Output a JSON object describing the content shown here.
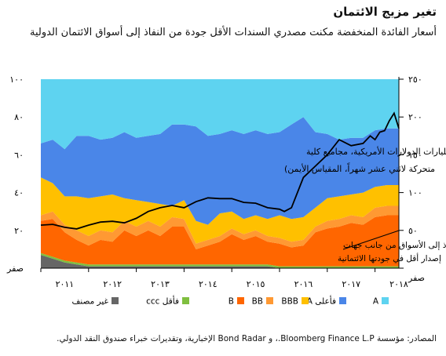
{
  "header": {
    "title": "تغير مزيج الائتمان",
    "subtitle": "أسعار الفائدة المنخفضة مكنت مصدري السندات الأقل جودة من النفاذ إلى أسواق الائتمان الدولية"
  },
  "footer": {
    "source": "المصادر: مؤسسة Bloomberg Finance L.P.، و Bond Radar الإخبارية، وتقديرات خبراء صندوق النقد الدولي."
  },
  "annotations": {
    "line_note_1": "الإصدار (بمليارات الدولارات الأمريكية، مجاميع كلية",
    "line_note_2": "متحركة لاثني عشر شهراً، المقياس الأيمن)",
    "share_note_1": "النفاذ إلى الأسواق من جانب جهات",
    "share_note_2": "إصدار أقل في جودتها الائتمانية"
  },
  "colors": {
    "A": "#5ed3f0",
    "A_or_higher": "#4a86e8",
    "BBB": "#ffc000",
    "BB": "#ff9933",
    "B": "#ff6600",
    "CCC": "#7fbf3f",
    "unrated": "#666666",
    "line": "#000000"
  },
  "chart_data": {
    "type": "area",
    "xlabel": "",
    "ylabel": "",
    "x_ticks": [
      "٢٠١١",
      "٢٠١٢",
      "٢٠١٣",
      "٢٠١٤",
      "٢٠١٥",
      "٢٠١٦",
      "٢٠١٧",
      "٢٠١٨"
    ],
    "x_range": [
      2011.0,
      2018.5
    ],
    "left_axis": {
      "range": [
        0,
        100
      ],
      "ticks": [
        0,
        20,
        40,
        60,
        80,
        100
      ],
      "tick_labels": [
        "صفر",
        "٢٠",
        "٤٠",
        "٦٠",
        "٨٠",
        "١٠٠"
      ]
    },
    "right_axis": {
      "range": [
        0,
        250
      ],
      "ticks": [
        0,
        50,
        100,
        150,
        200,
        250
      ],
      "tick_labels": [
        "صفر",
        "٥٠",
        "١٠٠",
        "١٥٠",
        "٢٠٠",
        "٢٥٠"
      ]
    },
    "legend": [
      "A",
      "A فأعلى",
      "BBB",
      "BB",
      "B",
      "ccc فأقل",
      "غير مصنف"
    ],
    "x": [
      2011.0,
      2011.25,
      2011.5,
      2011.75,
      2012.0,
      2012.25,
      2012.5,
      2012.75,
      2013.0,
      2013.25,
      2013.5,
      2013.75,
      2014.0,
      2014.25,
      2014.5,
      2014.75,
      2015.0,
      2015.25,
      2015.5,
      2015.75,
      2016.0,
      2016.25,
      2016.5,
      2016.75,
      2017.0,
      2017.25,
      2017.5,
      2017.75,
      2018.0,
      2018.25,
      2018.5
    ],
    "series": [
      {
        "name": "غير مصنف",
        "key": "unrated",
        "values": [
          7,
          5,
          3,
          2,
          1,
          1,
          1,
          1,
          1,
          1,
          1,
          1,
          1,
          1,
          1,
          1,
          1,
          1,
          1,
          1,
          0,
          0,
          0,
          0,
          0,
          0,
          0,
          0,
          0,
          0,
          0
        ]
      },
      {
        "name": "ccc فأقل",
        "key": "CCC",
        "values": [
          1,
          1,
          1,
          1,
          1,
          1,
          1,
          1,
          1,
          1,
          1,
          1,
          1,
          1,
          1,
          1,
          1,
          1,
          1,
          1,
          1,
          1,
          1,
          1,
          1,
          1,
          1,
          1,
          1,
          1,
          1
        ]
      },
      {
        "name": "B",
        "key": "B",
        "values": [
          17,
          20,
          15,
          12,
          10,
          13,
          12,
          18,
          15,
          18,
          15,
          20,
          20,
          8,
          10,
          12,
          16,
          13,
          15,
          12,
          12,
          10,
          11,
          18,
          20,
          21,
          23,
          22,
          26,
          27,
          27
        ]
      },
      {
        "name": "BB",
        "key": "BB",
        "values": [
          3,
          4,
          4,
          5,
          5,
          5,
          5,
          5,
          5,
          5,
          5,
          5,
          4,
          3,
          3,
          3,
          3,
          3,
          3,
          3,
          3,
          3,
          3,
          3,
          4,
          4,
          4,
          4,
          5,
          5,
          5
        ]
      },
      {
        "name": "BBB",
        "key": "BBB",
        "values": [
          20,
          15,
          15,
          18,
          20,
          18,
          20,
          12,
          14,
          10,
          12,
          6,
          10,
          12,
          8,
          12,
          9,
          8,
          8,
          9,
          12,
          12,
          12,
          10,
          12,
          12,
          11,
          13,
          11,
          11,
          11
        ]
      },
      {
        "name": "A فأعلى",
        "key": "A_or_higher",
        "values": [
          18,
          23,
          25,
          32,
          33,
          30,
          30,
          35,
          33,
          35,
          37,
          43,
          40,
          50,
          47,
          42,
          43,
          45,
          45,
          45,
          44,
          50,
          53,
          40,
          34,
          30,
          30,
          29,
          30,
          30,
          30
        ]
      },
      {
        "name": "A",
        "key": "A",
        "values": [
          34,
          32,
          37,
          30,
          30,
          32,
          31,
          28,
          31,
          30,
          29,
          24,
          24,
          25,
          30,
          29,
          27,
          29,
          27,
          29,
          28,
          24,
          20,
          28,
          29,
          32,
          31,
          31,
          27,
          26,
          26
        ]
      }
    ],
    "issuance": {
      "name": "الإصدار",
      "x": [
        2011.0,
        2011.25,
        2011.5,
        2011.75,
        2012.0,
        2012.25,
        2012.5,
        2012.75,
        2013.0,
        2013.25,
        2013.5,
        2013.75,
        2014.0,
        2014.25,
        2014.5,
        2014.75,
        2015.0,
        2015.25,
        2015.5,
        2015.75,
        2016.0,
        2016.1,
        2016.25,
        2016.5,
        2016.75,
        2017.0,
        2017.25,
        2017.5,
        2017.75,
        2017.9,
        2018.0,
        2018.1,
        2018.2,
        2018.3,
        2018.4,
        2018.5
      ],
      "values": [
        57,
        58,
        54,
        52,
        57,
        61,
        62,
        60,
        66,
        75,
        80,
        83,
        80,
        88,
        93,
        92,
        92,
        87,
        86,
        80,
        78,
        75,
        80,
        120,
        135,
        150,
        170,
        162,
        165,
        175,
        170,
        180,
        182,
        195,
        205,
        185
      ]
    }
  }
}
